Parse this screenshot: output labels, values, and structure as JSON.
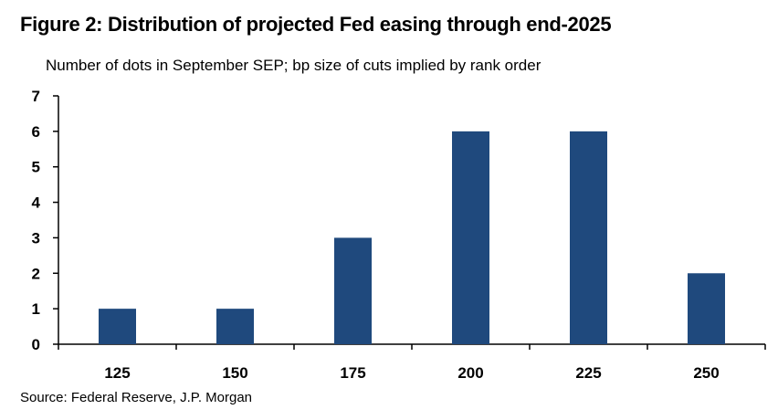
{
  "title": "Figure 2: Distribution of projected Fed easing through end-2025",
  "subtitle": "Number of dots in September SEP; bp size of cuts implied by rank order",
  "source": "Source: Federal Reserve, J.P. Morgan",
  "chart_data": {
    "type": "bar",
    "title": "Figure 2: Distribution of projected Fed easing through end-2025",
    "subtitle": "Number of dots in September SEP; bp size of cuts implied by rank order",
    "categories": [
      "125",
      "150",
      "175",
      "200",
      "225",
      "250"
    ],
    "values": [
      1,
      1,
      3,
      6,
      6,
      2
    ],
    "xlabel": "",
    "ylabel": "",
    "ylim": [
      0,
      7
    ],
    "yticks": [
      0,
      1,
      2,
      3,
      4,
      5,
      6,
      7
    ],
    "grid": false,
    "legend": "none",
    "bar_color": "#1F497D"
  }
}
